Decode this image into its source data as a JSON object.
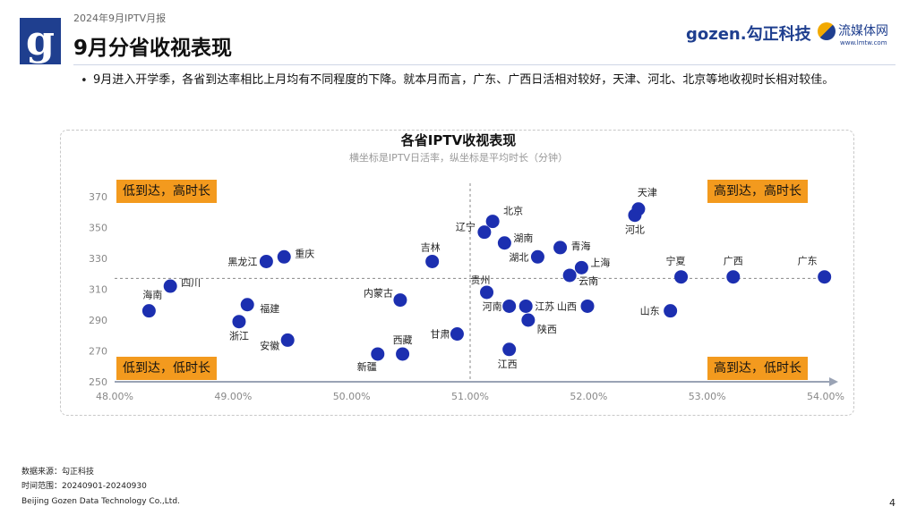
{
  "header": {
    "report_label": "2024年9月IPTV月报",
    "title": "9月分省收视表现",
    "logo_letter": "g",
    "brand_gozen": "gozen.勾正科技",
    "brand_media": "流媒体网",
    "brand_media_url": "www.lmtw.com"
  },
  "bullet": "9月进入开学季，各省到达率相比上月均有不同程度的下降。就本月而言，广东、广西日活相对较好，天津、河北、北京等地收视时长相对较佳。",
  "quadrants": {
    "top_left": "低到达，高时长",
    "top_right": "高到达，高时长",
    "bottom_left": "低到达，低时长",
    "bottom_right": "高到达，低时长"
  },
  "chart_data": {
    "type": "scatter",
    "title": "各省IPTV收视表现",
    "subtitle": "横坐标是IPTV日活率，纵坐标是平均时长（分钟）",
    "xlabel": "IPTV日活率",
    "ylabel": "平均时长（分钟）",
    "xlim": [
      48.0,
      54.0
    ],
    "ylim": [
      250,
      370
    ],
    "xticks": [
      "48.00%",
      "49.00%",
      "50.00%",
      "51.00%",
      "52.00%",
      "53.00%",
      "54.00%"
    ],
    "yticks": [
      "250",
      "270",
      "290",
      "310",
      "330",
      "350",
      "370"
    ],
    "reference_x": 51.0,
    "reference_y": 317,
    "points": [
      {
        "name": "广东",
        "x": 53.99,
        "y": 318
      },
      {
        "name": "广西",
        "x": 53.22,
        "y": 318
      },
      {
        "name": "宁夏",
        "x": 52.78,
        "y": 318
      },
      {
        "name": "天津",
        "x": 52.42,
        "y": 362
      },
      {
        "name": "河北",
        "x": 52.39,
        "y": 358
      },
      {
        "name": "山东",
        "x": 52.69,
        "y": 296
      },
      {
        "name": "北京",
        "x": 51.19,
        "y": 354
      },
      {
        "name": "辽宁",
        "x": 51.12,
        "y": 347
      },
      {
        "name": "湖南",
        "x": 51.29,
        "y": 340
      },
      {
        "name": "青海",
        "x": 51.76,
        "y": 337
      },
      {
        "name": "湖北",
        "x": 51.57,
        "y": 331
      },
      {
        "name": "上海",
        "x": 51.94,
        "y": 324
      },
      {
        "name": "云南",
        "x": 51.84,
        "y": 319
      },
      {
        "name": "贵州",
        "x": 51.14,
        "y": 308
      },
      {
        "name": "河南",
        "x": 51.33,
        "y": 299
      },
      {
        "name": "江苏",
        "x": 51.47,
        "y": 299
      },
      {
        "name": "山西",
        "x": 51.99,
        "y": 299
      },
      {
        "name": "陕西",
        "x": 51.49,
        "y": 290
      },
      {
        "name": "江西",
        "x": 51.33,
        "y": 271
      },
      {
        "name": "甘肃",
        "x": 50.89,
        "y": 281
      },
      {
        "name": "吉林",
        "x": 50.68,
        "y": 328
      },
      {
        "name": "内蒙古",
        "x": 50.41,
        "y": 303
      },
      {
        "name": "西藏",
        "x": 50.43,
        "y": 268
      },
      {
        "name": "新疆",
        "x": 50.22,
        "y": 268
      },
      {
        "name": "重庆",
        "x": 49.43,
        "y": 331
      },
      {
        "name": "黑龙江",
        "x": 49.28,
        "y": 328
      },
      {
        "name": "四川",
        "x": 48.47,
        "y": 312
      },
      {
        "name": "海南",
        "x": 48.29,
        "y": 296
      },
      {
        "name": "福建",
        "x": 49.12,
        "y": 300
      },
      {
        "name": "浙江",
        "x": 49.05,
        "y": 289
      },
      {
        "name": "安徽",
        "x": 49.46,
        "y": 277
      }
    ]
  },
  "footer": {
    "source": "数据来源：勾正科技",
    "range": "时间范围：20240901-20240930",
    "company": "Beijing Gozen Data Technology Co.,Ltd.",
    "page": "4"
  },
  "colors": {
    "dot": "#1c2fb0",
    "quadrant": "#f39a1e",
    "axis": "#9aa3b5",
    "brand": "#1f3f8f"
  }
}
